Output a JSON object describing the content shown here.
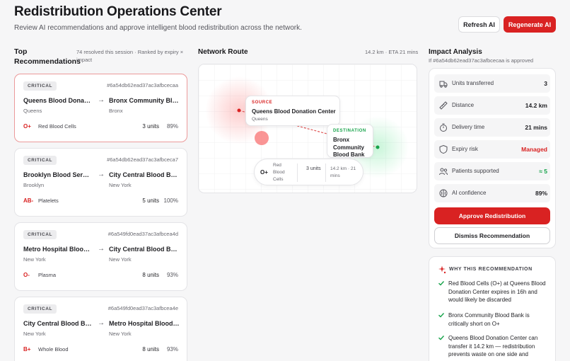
{
  "header": {
    "title": "Redistribution Operations Center",
    "subtitle": "Review AI recommendations and approve intelligent blood redistribution across the network.",
    "refresh_label": "Refresh AI",
    "regenerate_label": "Regenerate AI"
  },
  "recommendations": {
    "title": "Top Recommendations",
    "meta": "74 resolved this session · Ranked by expiry × impact",
    "items": [
      {
        "priority": "CRITICAL",
        "id": "#6a54db62ead37ac3afbcecaa",
        "from": "Queens Blood Donation Center",
        "from_city": "Queens",
        "to": "Bronx Community Blood Bank",
        "to_city": "Bronx",
        "blood_type": "O+",
        "component": "Red Blood Cells",
        "units": "3 units",
        "confidence": "89%",
        "selected": true
      },
      {
        "priority": "CRITICAL",
        "id": "#6a54db62ead37ac3afbceca7",
        "from": "Brooklyn Blood Services",
        "from_city": "Brooklyn",
        "to": "City Central Blood Bank",
        "to_city": "New York",
        "blood_type": "AB-",
        "component": "Platelets",
        "units": "5 units",
        "confidence": "100%",
        "selected": false
      },
      {
        "priority": "CRITICAL",
        "id": "#6a549fd0ead37ac3afbcea4d",
        "from": "Metro Hospital Blood Bank",
        "from_city": "New York",
        "to": "City Central Blood Bank",
        "to_city": "New York",
        "blood_type": "O-",
        "component": "Plasma",
        "units": "8 units",
        "confidence": "93%",
        "selected": false
      },
      {
        "priority": "CRITICAL",
        "id": "#6a549fd0ead37ac3afbcea4e",
        "from": "City Central Blood Bank",
        "from_city": "New York",
        "to": "Metro Hospital Blood Bank",
        "to_city": "New York",
        "blood_type": "B+",
        "component": "Whole Blood",
        "units": "8 units",
        "confidence": "93%",
        "selected": false
      }
    ]
  },
  "network": {
    "title": "Network Route",
    "meta": "14.2 km · ETA 21 mins",
    "source_label": "SOURCE",
    "source_name": "Queens Blood Donation Center",
    "source_city": "Queens",
    "destination_label": "DESTINATION",
    "destination_name": "Bronx Community Blood Bank",
    "info_type": "O+",
    "info_component": "Red Blood Cells",
    "info_units": "3 units",
    "info_distance": "14.2 km · 21 mins"
  },
  "impact": {
    "title": "Impact Analysis",
    "subtitle": "If #6a54db62ead37ac3afbcecaa is approved",
    "metrics": [
      {
        "icon": "truck-icon",
        "label": "Units transferred",
        "value": "3",
        "color": "#1f1f23"
      },
      {
        "icon": "ruler-icon",
        "label": "Distance",
        "value": "14.2 km",
        "color": "#1f1f23"
      },
      {
        "icon": "timer-icon",
        "label": "Delivery time",
        "value": "21 mins",
        "color": "#1f1f23"
      },
      {
        "icon": "shield-icon",
        "label": "Expiry risk",
        "value": "Managed",
        "color": "#d92222"
      },
      {
        "icon": "users-icon",
        "label": "Patients supported",
        "value": "≈ 5",
        "color": "#16a34a"
      },
      {
        "icon": "brain-icon",
        "label": "AI confidence",
        "value": "89%",
        "color": "#1f1f23"
      }
    ],
    "approve_label": "Approve Redistribution",
    "dismiss_label": "Dismiss Recommendation"
  },
  "why": {
    "title": "WHY THIS RECOMMENDATION",
    "items": [
      "Red Blood Cells (O+) at Queens Blood Donation Center expires in 16h and would likely be discarded",
      "Bronx Community Blood Bank is critically short on O+",
      "Queens Blood Donation Center can transfer it 14.2 km — redistribution prevents waste on one side and"
    ]
  },
  "colors": {
    "accent": "#d92222",
    "success": "#16a34a",
    "selected_border": "#ec9a9a"
  }
}
